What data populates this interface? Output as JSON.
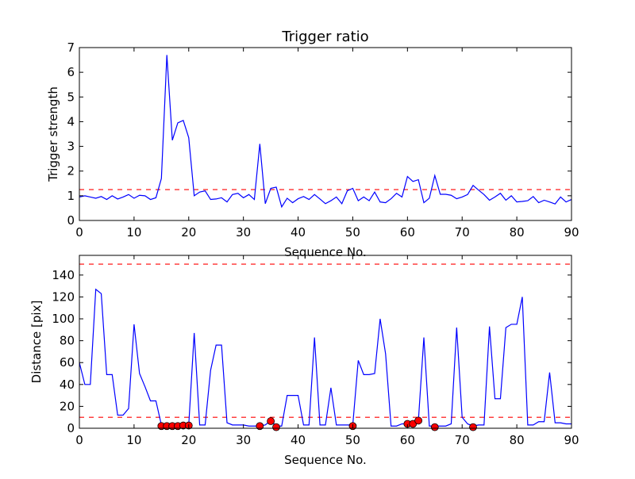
{
  "chart_data": [
    {
      "type": "line",
      "title": "Trigger ratio",
      "xlabel": "Sequence No.",
      "ylabel": "Trigger strength",
      "xlim": [
        0,
        90
      ],
      "ylim": [
        0,
        7
      ],
      "xticks": [
        0,
        10,
        20,
        30,
        40,
        50,
        60,
        70,
        80,
        90
      ],
      "yticks": [
        0,
        1,
        2,
        3,
        4,
        5,
        6,
        7
      ],
      "grid": false,
      "series": [
        {
          "color": "#0000ff",
          "x": [
            0,
            1,
            2,
            3,
            4,
            5,
            6,
            7,
            8,
            9,
            10,
            11,
            12,
            13,
            14,
            15,
            16,
            17,
            18,
            19,
            20,
            21,
            22,
            23,
            24,
            25,
            26,
            27,
            28,
            29,
            30,
            31,
            32,
            33,
            34,
            35,
            36,
            37,
            38,
            39,
            40,
            41,
            42,
            43,
            44,
            45,
            46,
            47,
            48,
            49,
            50,
            51,
            52,
            53,
            54,
            55,
            56,
            57,
            58,
            59,
            60,
            61,
            62,
            63,
            64,
            65,
            66,
            67,
            68,
            69,
            70,
            71,
            72,
            73,
            74,
            75,
            76,
            77,
            78,
            79,
            80,
            81,
            82,
            83,
            84,
            85,
            86,
            87,
            88,
            89,
            90
          ],
          "y": [
            0.95,
            1.0,
            0.95,
            0.9,
            0.97,
            0.85,
            1.0,
            0.87,
            0.95,
            1.05,
            0.9,
            1.02,
            1.0,
            0.85,
            0.92,
            1.7,
            6.7,
            3.25,
            3.95,
            4.05,
            3.35,
            1.0,
            1.15,
            1.2,
            0.85,
            0.87,
            0.92,
            0.75,
            1.05,
            1.1,
            0.92,
            1.05,
            0.85,
            3.1,
            0.68,
            1.3,
            1.35,
            0.55,
            0.9,
            0.72,
            0.88,
            0.97,
            0.85,
            1.05,
            0.87,
            0.68,
            0.8,
            0.95,
            0.68,
            1.2,
            1.3,
            0.8,
            0.95,
            0.8,
            1.15,
            0.75,
            0.72,
            0.88,
            1.1,
            0.95,
            1.78,
            1.58,
            1.65,
            0.72,
            0.9,
            1.82,
            1.06,
            1.06,
            1.02,
            0.88,
            0.95,
            1.05,
            1.42,
            1.23,
            1.05,
            0.82,
            0.95,
            1.1,
            0.82,
            1.0,
            0.75,
            0.77,
            0.8,
            0.97,
            0.72,
            0.82,
            0.75,
            0.67,
            0.95,
            0.75,
            0.85
          ]
        }
      ],
      "threshold": {
        "y": 1.25,
        "color": "#ff0000",
        "style": "dashed"
      }
    },
    {
      "type": "line",
      "title": "",
      "xlabel": "Sequence No.",
      "ylabel": "Distance [pix]",
      "xlim": [
        0,
        90
      ],
      "ylim": [
        0,
        158
      ],
      "xticks": [
        0,
        10,
        20,
        30,
        40,
        50,
        60,
        70,
        80,
        90
      ],
      "yticks": [
        0,
        20,
        40,
        60,
        80,
        100,
        120,
        140
      ],
      "grid": false,
      "series": [
        {
          "color": "#0000ff",
          "x": [
            0,
            1,
            2,
            3,
            4,
            5,
            6,
            7,
            8,
            9,
            10,
            11,
            12,
            13,
            14,
            15,
            16,
            17,
            18,
            19,
            20,
            21,
            22,
            23,
            24,
            25,
            26,
            27,
            28,
            29,
            30,
            31,
            32,
            33,
            34,
            35,
            36,
            37,
            38,
            39,
            40,
            41,
            42,
            43,
            44,
            45,
            46,
            47,
            48,
            49,
            50,
            51,
            52,
            53,
            54,
            55,
            56,
            57,
            58,
            59,
            60,
            61,
            62,
            63,
            64,
            65,
            66,
            67,
            68,
            69,
            70,
            71,
            72,
            73,
            74,
            75,
            76,
            77,
            78,
            79,
            80,
            81,
            82,
            83,
            84,
            85,
            86,
            87,
            88,
            89,
            90
          ],
          "y": [
            60,
            40,
            40,
            127,
            123,
            49,
            49,
            12,
            12,
            18,
            95,
            50,
            38,
            25,
            25,
            3,
            3,
            3,
            3,
            3,
            3,
            87,
            3,
            3,
            53,
            76,
            76,
            5,
            3,
            3,
            3,
            2,
            2,
            2,
            3,
            7,
            2,
            2,
            30,
            30,
            30,
            3,
            3,
            83,
            3,
            3,
            37,
            3,
            3,
            3,
            3,
            62,
            49,
            49,
            50,
            100,
            68,
            2,
            2,
            4,
            4,
            4,
            7,
            83,
            2,
            2,
            2,
            2,
            4,
            92,
            10,
            4,
            2,
            3,
            3,
            93,
            27,
            27,
            92,
            95,
            95,
            120,
            3,
            3,
            6,
            6,
            51,
            5,
            5,
            4,
            4
          ]
        }
      ],
      "markers": {
        "color": "#ff0000",
        "points": [
          [
            15,
            2
          ],
          [
            16,
            2
          ],
          [
            17,
            2
          ],
          [
            18,
            2
          ],
          [
            19,
            2.5
          ],
          [
            20,
            2.5
          ],
          [
            33,
            2
          ],
          [
            35,
            6.5
          ],
          [
            36,
            1
          ],
          [
            50,
            2
          ],
          [
            60,
            4
          ],
          [
            61,
            4
          ],
          [
            62,
            7
          ],
          [
            65,
            1
          ],
          [
            72,
            1
          ]
        ]
      },
      "thresholds": [
        {
          "y": 150,
          "color": "#ff0000",
          "style": "dashed"
        },
        {
          "y": 10,
          "color": "#ff0000",
          "style": "dashed"
        }
      ]
    }
  ]
}
